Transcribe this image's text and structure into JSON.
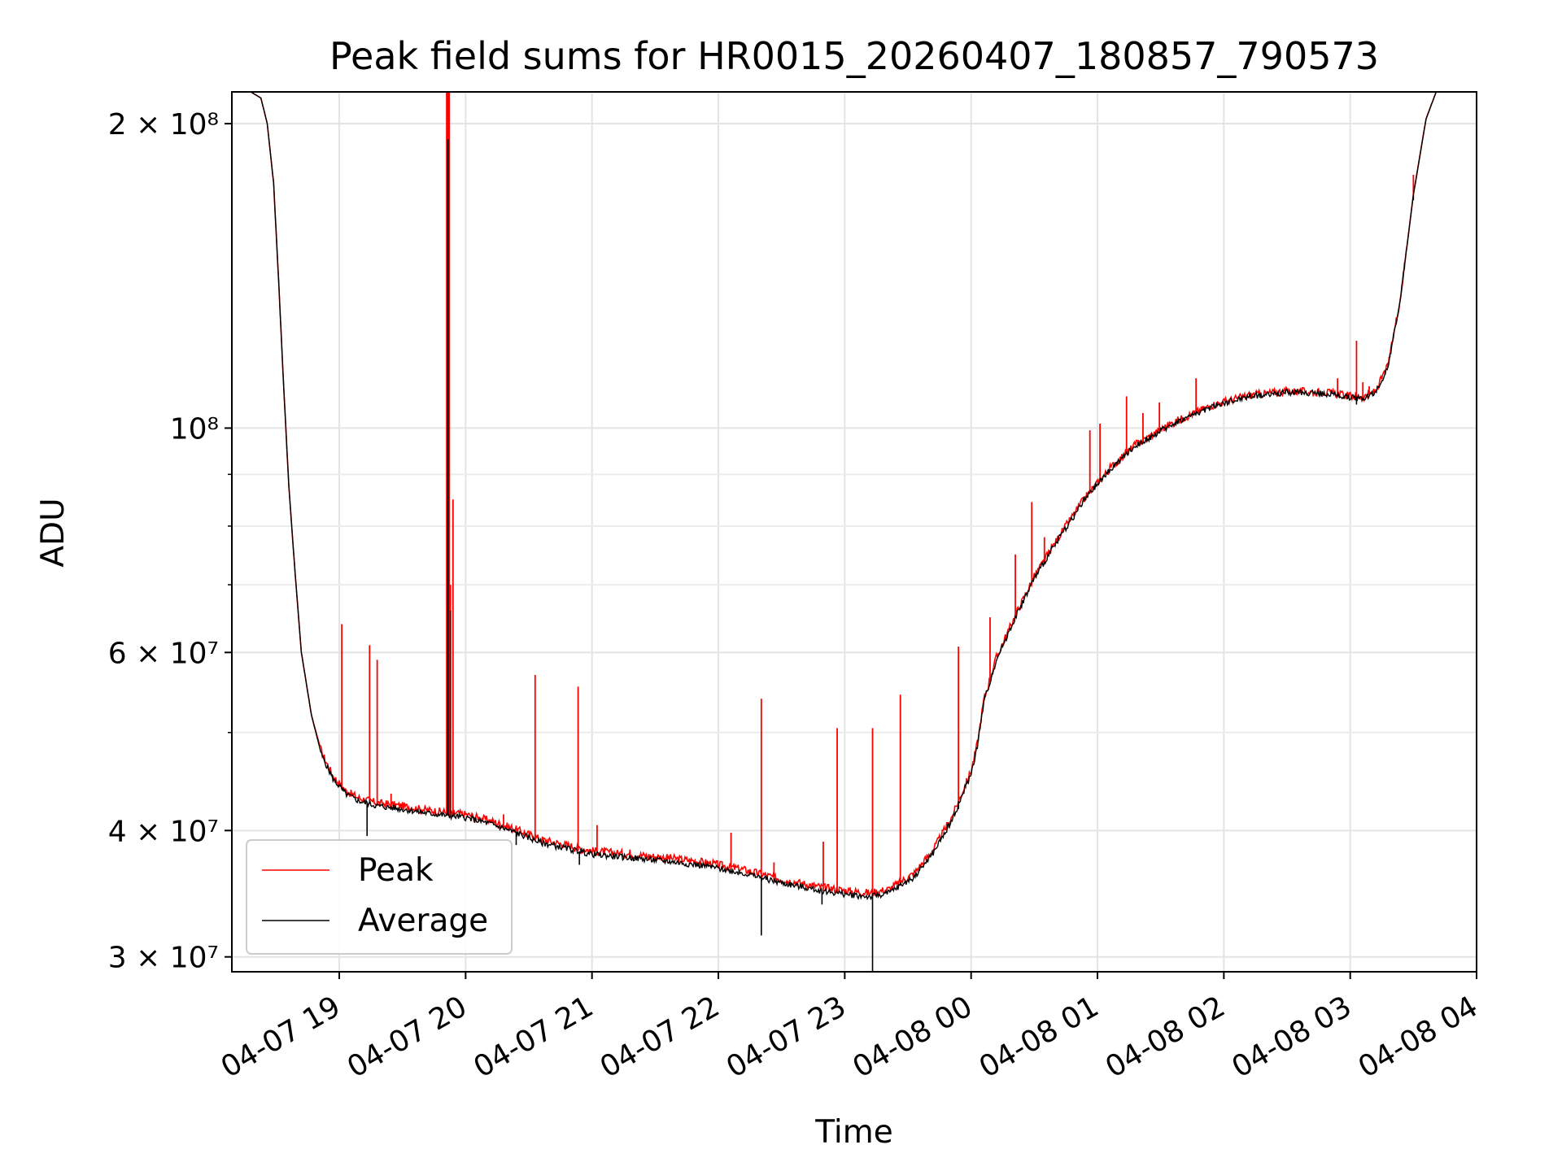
{
  "chart_data": {
    "type": "line",
    "title": "Peak field sums for HR0015_20260407_180857_790573",
    "xlabel": "Time",
    "ylabel": "ADU",
    "yscale": "log",
    "grid": true,
    "legend_position": "lower-left",
    "x_unit": "hours after 2026-04-07 18:00",
    "xlim": [
      0.15,
      10.0
    ],
    "ylim": [
      29000000,
      215000000
    ],
    "x_ticks": [
      {
        "value": 1,
        "label": "04-07 19"
      },
      {
        "value": 2,
        "label": "04-07 20"
      },
      {
        "value": 3,
        "label": "04-07 21"
      },
      {
        "value": 4,
        "label": "04-07 22"
      },
      {
        "value": 5,
        "label": "04-07 23"
      },
      {
        "value": 6,
        "label": "04-08 00"
      },
      {
        "value": 7,
        "label": "04-08 01"
      },
      {
        "value": 8,
        "label": "04-08 02"
      },
      {
        "value": 9,
        "label": "04-08 03"
      },
      {
        "value": 10,
        "label": "04-08 04"
      }
    ],
    "y_ticks": [
      {
        "value": 30000000,
        "label": "3 × 10⁷"
      },
      {
        "value": 40000000,
        "label": "4 × 10⁷"
      },
      {
        "value": 60000000,
        "label": "6 × 10⁷"
      },
      {
        "value": 100000000,
        "label": "10⁸"
      },
      {
        "value": 200000000,
        "label": "2 × 10⁸"
      }
    ],
    "y_minor_ticks": [
      50000000,
      70000000,
      80000000,
      90000000
    ],
    "series": [
      {
        "name": "Average",
        "color": "#000000",
        "x": [
          0.15,
          0.3,
          0.38,
          0.43,
          0.48,
          0.52,
          0.56,
          0.6,
          0.65,
          0.7,
          0.78,
          0.86,
          0.95,
          1.05,
          1.15,
          1.3,
          1.5,
          1.7,
          1.85,
          2.0,
          2.2,
          2.4,
          2.6,
          2.8,
          3.0,
          3.3,
          3.6,
          3.9,
          4.2,
          4.5,
          4.8,
          5.0,
          5.2,
          5.35,
          5.55,
          5.7,
          5.85,
          6.0,
          6.05,
          6.1,
          6.2,
          6.35,
          6.5,
          6.7,
          6.9,
          7.1,
          7.3,
          7.6,
          7.9,
          8.2,
          8.5,
          8.8,
          9.0,
          9.1,
          9.2,
          9.3,
          9.4,
          9.5,
          9.6,
          9.68,
          9.75,
          10.0
        ],
        "values": [
          215000000,
          215000000,
          212000000,
          200000000,
          175000000,
          140000000,
          110000000,
          88000000,
          72000000,
          60000000,
          52000000,
          47500000,
          45000000,
          43500000,
          42800000,
          42300000,
          42000000,
          41600000,
          41400000,
          41200000,
          40600000,
          39800000,
          38900000,
          38400000,
          37900000,
          37600000,
          37300000,
          36900000,
          36300000,
          35500000,
          34900000,
          34600000,
          34400000,
          34700000,
          36000000,
          38000000,
          41000000,
          45500000,
          48500000,
          53500000,
          59000000,
          65000000,
          71000000,
          78000000,
          85000000,
          91000000,
          96000000,
          101000000,
          105000000,
          107500000,
          108500000,
          108200000,
          107300000,
          107000000,
          108500000,
          115000000,
          135000000,
          170000000,
          202000000,
          215000000,
          215000000,
          215000000
        ]
      },
      {
        "name": "Peak",
        "color": "#ff0000",
        "x": [
          0.15,
          0.3,
          0.38,
          0.43,
          0.48,
          0.52,
          0.56,
          0.6,
          0.65,
          0.7,
          0.78,
          0.86,
          0.95,
          1.05,
          1.15,
          1.3,
          1.5,
          1.7,
          1.85,
          2.0,
          2.2,
          2.4,
          2.6,
          2.8,
          3.0,
          3.3,
          3.6,
          3.9,
          4.2,
          4.5,
          4.8,
          5.0,
          5.2,
          5.35,
          5.55,
          5.7,
          5.85,
          6.0,
          6.05,
          6.1,
          6.2,
          6.35,
          6.5,
          6.7,
          6.9,
          7.1,
          7.3,
          7.6,
          7.9,
          8.2,
          8.5,
          8.8,
          9.0,
          9.1,
          9.2,
          9.3,
          9.4,
          9.5,
          9.6,
          9.68,
          9.75,
          10.0
        ],
        "values": [
          215000000,
          215000000,
          212000000,
          200000000,
          175000000,
          140000000,
          110000000,
          88000000,
          72000000,
          60000000,
          52000000,
          47800000,
          45300000,
          43800000,
          43100000,
          42600000,
          42300000,
          41900000,
          41700000,
          41500000,
          40900000,
          40100000,
          39200000,
          38700000,
          38200000,
          37900000,
          37600000,
          37200000,
          36600000,
          35800000,
          35200000,
          34900000,
          34700000,
          35000000,
          36300000,
          38300000,
          41300000,
          45800000,
          48800000,
          53800000,
          59300000,
          65300000,
          71300000,
          78300000,
          85300000,
          91300000,
          96300000,
          101300000,
          105300000,
          107800000,
          108800000,
          108500000,
          107600000,
          107300000,
          108800000,
          115300000,
          135300000,
          170300000,
          202300000,
          215000000,
          215000000,
          215000000
        ]
      }
    ],
    "peak_spikes": [
      {
        "x": 1.02,
        "y": 64000000
      },
      {
        "x": 1.24,
        "y": 61000000
      },
      {
        "x": 1.3,
        "y": 59000000
      },
      {
        "x": 1.41,
        "y": 43500000
      },
      {
        "x": 1.85,
        "y": 215000000
      },
      {
        "x": 1.86,
        "y": 215000000
      },
      {
        "x": 1.87,
        "y": 215000000
      },
      {
        "x": 1.88,
        "y": 70000000
      },
      {
        "x": 1.9,
        "y": 85000000
      },
      {
        "x": 2.3,
        "y": 41500000
      },
      {
        "x": 2.55,
        "y": 57000000
      },
      {
        "x": 2.89,
        "y": 55500000
      },
      {
        "x": 3.04,
        "y": 40500000
      },
      {
        "x": 3.1,
        "y": 38500000
      },
      {
        "x": 3.3,
        "y": 38300000
      },
      {
        "x": 4.1,
        "y": 39800000
      },
      {
        "x": 4.34,
        "y": 54000000
      },
      {
        "x": 4.44,
        "y": 37200000
      },
      {
        "x": 4.83,
        "y": 39000000
      },
      {
        "x": 4.94,
        "y": 50500000
      },
      {
        "x": 5.22,
        "y": 50500000
      },
      {
        "x": 5.44,
        "y": 54500000
      },
      {
        "x": 5.9,
        "y": 60800000
      },
      {
        "x": 6.15,
        "y": 65000000
      },
      {
        "x": 6.35,
        "y": 75000000
      },
      {
        "x": 6.48,
        "y": 84500000
      },
      {
        "x": 6.58,
        "y": 78000000
      },
      {
        "x": 6.94,
        "y": 99500000
      },
      {
        "x": 7.02,
        "y": 101000000
      },
      {
        "x": 7.23,
        "y": 107500000
      },
      {
        "x": 7.36,
        "y": 103500000
      },
      {
        "x": 7.49,
        "y": 106000000
      },
      {
        "x": 7.78,
        "y": 112000000
      },
      {
        "x": 8.9,
        "y": 112000000
      },
      {
        "x": 9.05,
        "y": 122000000
      },
      {
        "x": 9.1,
        "y": 111000000
      },
      {
        "x": 9.15,
        "y": 110000000
      },
      {
        "x": 9.2,
        "y": 109000000
      },
      {
        "x": 9.5,
        "y": 178000000
      }
    ],
    "average_dips": [
      {
        "x": 1.22,
        "y": 39500000
      },
      {
        "x": 1.86,
        "y": 193000000
      },
      {
        "x": 1.88,
        "y": 66000000
      },
      {
        "x": 2.4,
        "y": 38700000
      },
      {
        "x": 2.9,
        "y": 37000000
      },
      {
        "x": 4.34,
        "y": 31500000
      },
      {
        "x": 4.82,
        "y": 33800000
      },
      {
        "x": 5.22,
        "y": 28500000
      },
      {
        "x": 5.9,
        "y": 42000000
      },
      {
        "x": 9.05,
        "y": 105500000
      },
      {
        "x": 9.5,
        "y": 168000000
      }
    ],
    "legend": [
      {
        "label": "Peak",
        "color": "#ff0000"
      },
      {
        "label": "Average",
        "color": "#000000"
      }
    ]
  }
}
